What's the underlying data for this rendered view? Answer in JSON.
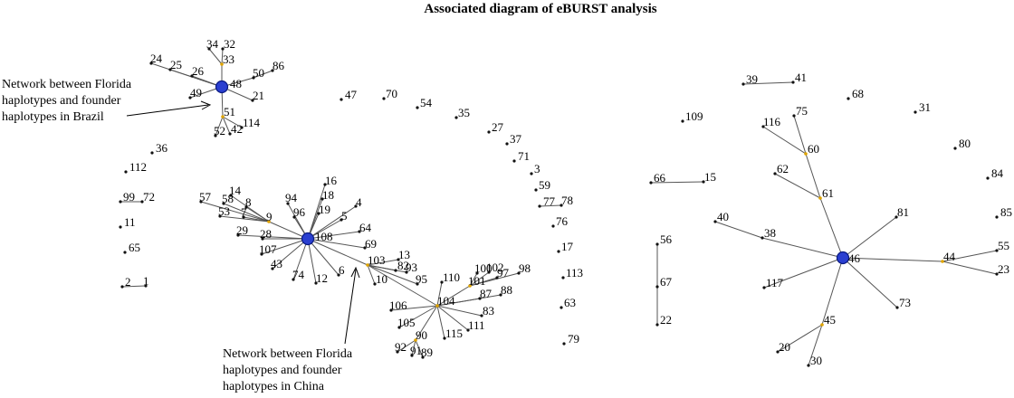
{
  "title": "Associated diagram  of eBURST analysis",
  "annotations": {
    "brazil": [
      "Network between Florida",
      "haplotypes and founder",
      "haplotypes in Brazil"
    ],
    "china": [
      "Network between Florida",
      "haplotypes and founder",
      "haplotypes in China"
    ]
  },
  "founders": [
    "48",
    "108",
    "46"
  ],
  "subgroup_founders": [
    "33",
    "51",
    "9",
    "103",
    "104",
    "101",
    "90",
    "60",
    "61",
    "44",
    "45"
  ],
  "edges": [
    [
      "48",
      "33"
    ],
    [
      "33",
      "34"
    ],
    [
      "33",
      "32"
    ],
    [
      "48",
      "24"
    ],
    [
      "48",
      "25"
    ],
    [
      "48",
      "26"
    ],
    [
      "48",
      "49"
    ],
    [
      "48",
      "50"
    ],
    [
      "50",
      "86"
    ],
    [
      "48",
      "21"
    ],
    [
      "48",
      "51"
    ],
    [
      "51",
      "52"
    ],
    [
      "51",
      "42"
    ],
    [
      "51",
      "114"
    ],
    [
      "108",
      "16"
    ],
    [
      "108",
      "18"
    ],
    [
      "108",
      "19"
    ],
    [
      "108",
      "94"
    ],
    [
      "108",
      "96"
    ],
    [
      "108",
      "4"
    ],
    [
      "108",
      "5"
    ],
    [
      "108",
      "64"
    ],
    [
      "108",
      "69"
    ],
    [
      "108",
      "29"
    ],
    [
      "108",
      "28"
    ],
    [
      "108",
      "107"
    ],
    [
      "108",
      "43"
    ],
    [
      "108",
      "74"
    ],
    [
      "108",
      "12"
    ],
    [
      "108",
      "6"
    ],
    [
      "108",
      "9"
    ],
    [
      "9",
      "7"
    ],
    [
      "9",
      "8"
    ],
    [
      "9",
      "14"
    ],
    [
      "9",
      "58"
    ],
    [
      "9",
      "57"
    ],
    [
      "9",
      "53"
    ],
    [
      "108",
      "103"
    ],
    [
      "103",
      "10"
    ],
    [
      "103",
      "13"
    ],
    [
      "103",
      "82"
    ],
    [
      "103",
      "93"
    ],
    [
      "103",
      "95"
    ],
    [
      "103",
      "104"
    ],
    [
      "104",
      "110"
    ],
    [
      "104",
      "101"
    ],
    [
      "101",
      "100"
    ],
    [
      "101",
      "102"
    ],
    [
      "101",
      "97"
    ],
    [
      "101",
      "98"
    ],
    [
      "104",
      "87"
    ],
    [
      "104",
      "88"
    ],
    [
      "104",
      "83"
    ],
    [
      "104",
      "111"
    ],
    [
      "104",
      "115"
    ],
    [
      "104",
      "106"
    ],
    [
      "104",
      "105"
    ],
    [
      "104",
      "90"
    ],
    [
      "90",
      "92"
    ],
    [
      "90",
      "91"
    ],
    [
      "90",
      "89"
    ],
    [
      "46",
      "81"
    ],
    [
      "46",
      "38"
    ],
    [
      "38",
      "40"
    ],
    [
      "46",
      "61"
    ],
    [
      "61",
      "62"
    ],
    [
      "61",
      "60"
    ],
    [
      "60",
      "116"
    ],
    [
      "60",
      "75"
    ],
    [
      "46",
      "44"
    ],
    [
      "44",
      "55"
    ],
    [
      "44",
      "23"
    ],
    [
      "46",
      "117"
    ],
    [
      "46",
      "73"
    ],
    [
      "46",
      "45"
    ],
    [
      "45",
      "20"
    ],
    [
      "45",
      "30"
    ],
    [
      "39",
      "41"
    ],
    [
      "66",
      "15"
    ],
    [
      "56",
      "22"
    ],
    [
      "99",
      "72"
    ],
    [
      "2",
      "1"
    ],
    [
      "77",
      "78"
    ]
  ],
  "nodes": [
    {
      "id": "48",
      "label": "48"
    },
    {
      "id": "33",
      "label": "33"
    },
    {
      "id": "34",
      "label": "34"
    },
    {
      "id": "32",
      "label": "32"
    },
    {
      "id": "24",
      "label": "24"
    },
    {
      "id": "25",
      "label": "25"
    },
    {
      "id": "26",
      "label": "26"
    },
    {
      "id": "49",
      "label": "49"
    },
    {
      "id": "50",
      "label": "50"
    },
    {
      "id": "86",
      "label": "86"
    },
    {
      "id": "21",
      "label": "21"
    },
    {
      "id": "51",
      "label": "51"
    },
    {
      "id": "52",
      "label": "52"
    },
    {
      "id": "42",
      "label": "42"
    },
    {
      "id": "114",
      "label": "114"
    },
    {
      "id": "36",
      "label": "36"
    },
    {
      "id": "112",
      "label": "112"
    },
    {
      "id": "99",
      "label": "99"
    },
    {
      "id": "72",
      "label": "72"
    },
    {
      "id": "11",
      "label": "11"
    },
    {
      "id": "65",
      "label": "65"
    },
    {
      "id": "2",
      "label": "2"
    },
    {
      "id": "1",
      "label": "1"
    },
    {
      "id": "108",
      "label": "108"
    },
    {
      "id": "16",
      "label": "16"
    },
    {
      "id": "18",
      "label": "18"
    },
    {
      "id": "19",
      "label": "19"
    },
    {
      "id": "94",
      "label": "94"
    },
    {
      "id": "96",
      "label": "96"
    },
    {
      "id": "4",
      "label": "4"
    },
    {
      "id": "5",
      "label": "5"
    },
    {
      "id": "64",
      "label": "64"
    },
    {
      "id": "69",
      "label": "69"
    },
    {
      "id": "29",
      "label": "29"
    },
    {
      "id": "28",
      "label": "28"
    },
    {
      "id": "107",
      "label": "107"
    },
    {
      "id": "43",
      "label": "43"
    },
    {
      "id": "74",
      "label": "74"
    },
    {
      "id": "12",
      "label": "12"
    },
    {
      "id": "6",
      "label": "6"
    },
    {
      "id": "9",
      "label": "9"
    },
    {
      "id": "7",
      "label": "7"
    },
    {
      "id": "8",
      "label": "8"
    },
    {
      "id": "14",
      "label": "14"
    },
    {
      "id": "58",
      "label": "58"
    },
    {
      "id": "57",
      "label": "57"
    },
    {
      "id": "53",
      "label": "53"
    },
    {
      "id": "103",
      "label": "103"
    },
    {
      "id": "10",
      "label": "10"
    },
    {
      "id": "13",
      "label": "13"
    },
    {
      "id": "82",
      "label": "82"
    },
    {
      "id": "93",
      "label": "93"
    },
    {
      "id": "95",
      "label": "95"
    },
    {
      "id": "104",
      "label": "104"
    },
    {
      "id": "110",
      "label": "110"
    },
    {
      "id": "101",
      "label": "101"
    },
    {
      "id": "100",
      "label": "100"
    },
    {
      "id": "102",
      "label": "102"
    },
    {
      "id": "97",
      "label": "97"
    },
    {
      "id": "98",
      "label": "98"
    },
    {
      "id": "87",
      "label": "87"
    },
    {
      "id": "88",
      "label": "88"
    },
    {
      "id": "83",
      "label": "83"
    },
    {
      "id": "111",
      "label": "111"
    },
    {
      "id": "115",
      "label": "115"
    },
    {
      "id": "106",
      "label": "106"
    },
    {
      "id": "105",
      "label": "105"
    },
    {
      "id": "90",
      "label": "90"
    },
    {
      "id": "92",
      "label": "92"
    },
    {
      "id": "91",
      "label": "91"
    },
    {
      "id": "89",
      "label": "89"
    },
    {
      "id": "47",
      "label": "47"
    },
    {
      "id": "70",
      "label": "70"
    },
    {
      "id": "54",
      "label": "54"
    },
    {
      "id": "35",
      "label": "35"
    },
    {
      "id": "27",
      "label": "27"
    },
    {
      "id": "37",
      "label": "37"
    },
    {
      "id": "71",
      "label": "71"
    },
    {
      "id": "3",
      "label": "3"
    },
    {
      "id": "59",
      "label": "59"
    },
    {
      "id": "77",
      "label": "77"
    },
    {
      "id": "78",
      "label": "78"
    },
    {
      "id": "76",
      "label": "76"
    },
    {
      "id": "17",
      "label": "17"
    },
    {
      "id": "113",
      "label": "113"
    },
    {
      "id": "63",
      "label": "63"
    },
    {
      "id": "79",
      "label": "79"
    },
    {
      "id": "109",
      "label": "109"
    },
    {
      "id": "66",
      "label": "66"
    },
    {
      "id": "15",
      "label": "15"
    },
    {
      "id": "56",
      "label": "56"
    },
    {
      "id": "67",
      "label": "67"
    },
    {
      "id": "22",
      "label": "22"
    },
    {
      "id": "39",
      "label": "39"
    },
    {
      "id": "41",
      "label": "41"
    },
    {
      "id": "68",
      "label": "68"
    },
    {
      "id": "31",
      "label": "31"
    },
    {
      "id": "80",
      "label": "80"
    },
    {
      "id": "84",
      "label": "84"
    },
    {
      "id": "85",
      "label": "85"
    },
    {
      "id": "46",
      "label": "46"
    },
    {
      "id": "116",
      "label": "116"
    },
    {
      "id": "75",
      "label": "75"
    },
    {
      "id": "60",
      "label": "60"
    },
    {
      "id": "62",
      "label": "62"
    },
    {
      "id": "61",
      "label": "61"
    },
    {
      "id": "40",
      "label": "40"
    },
    {
      "id": "38",
      "label": "38"
    },
    {
      "id": "81",
      "label": "81"
    },
    {
      "id": "44",
      "label": "44"
    },
    {
      "id": "55",
      "label": "55"
    },
    {
      "id": "23",
      "label": "23"
    },
    {
      "id": "117",
      "label": "117"
    },
    {
      "id": "73",
      "label": "73"
    },
    {
      "id": "45",
      "label": "45"
    },
    {
      "id": "20",
      "label": "20"
    },
    {
      "id": "30",
      "label": "30"
    }
  ]
}
